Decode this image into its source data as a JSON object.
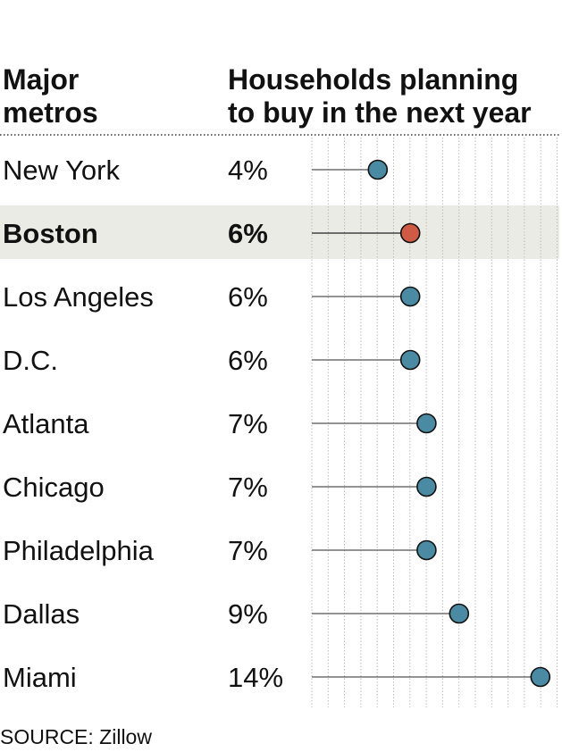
{
  "headers": {
    "metro_line1": "Major",
    "metro_line2": "metros",
    "value_line1": "Households planning",
    "value_line2": "to buy in the next year"
  },
  "source": "SOURCE: Zillow",
  "colors": {
    "default_dot": "#4a8aa3",
    "highlight_dot": "#cf5a45",
    "highlight_band": "#ebebe6",
    "stem": "#555555",
    "grid": "#bbbbbb"
  },
  "chart_data": {
    "type": "dot",
    "title": "",
    "xlabel": "",
    "ylabel": "",
    "categories": [
      "New York",
      "Boston",
      "Los Angeles",
      "D.C.",
      "Atlanta",
      "Chicago",
      "Philadelphia",
      "Dallas",
      "Miami"
    ],
    "value_labels": [
      "4%",
      "6%",
      "6%",
      "6%",
      "7%",
      "7%",
      "7%",
      "9%",
      "14%"
    ],
    "values": [
      4,
      6,
      6,
      6,
      7,
      7,
      7,
      9,
      14
    ],
    "highlight": "Boston",
    "xlim": [
      0,
      15
    ],
    "grid": "vertical-dotted",
    "unit": "%"
  }
}
